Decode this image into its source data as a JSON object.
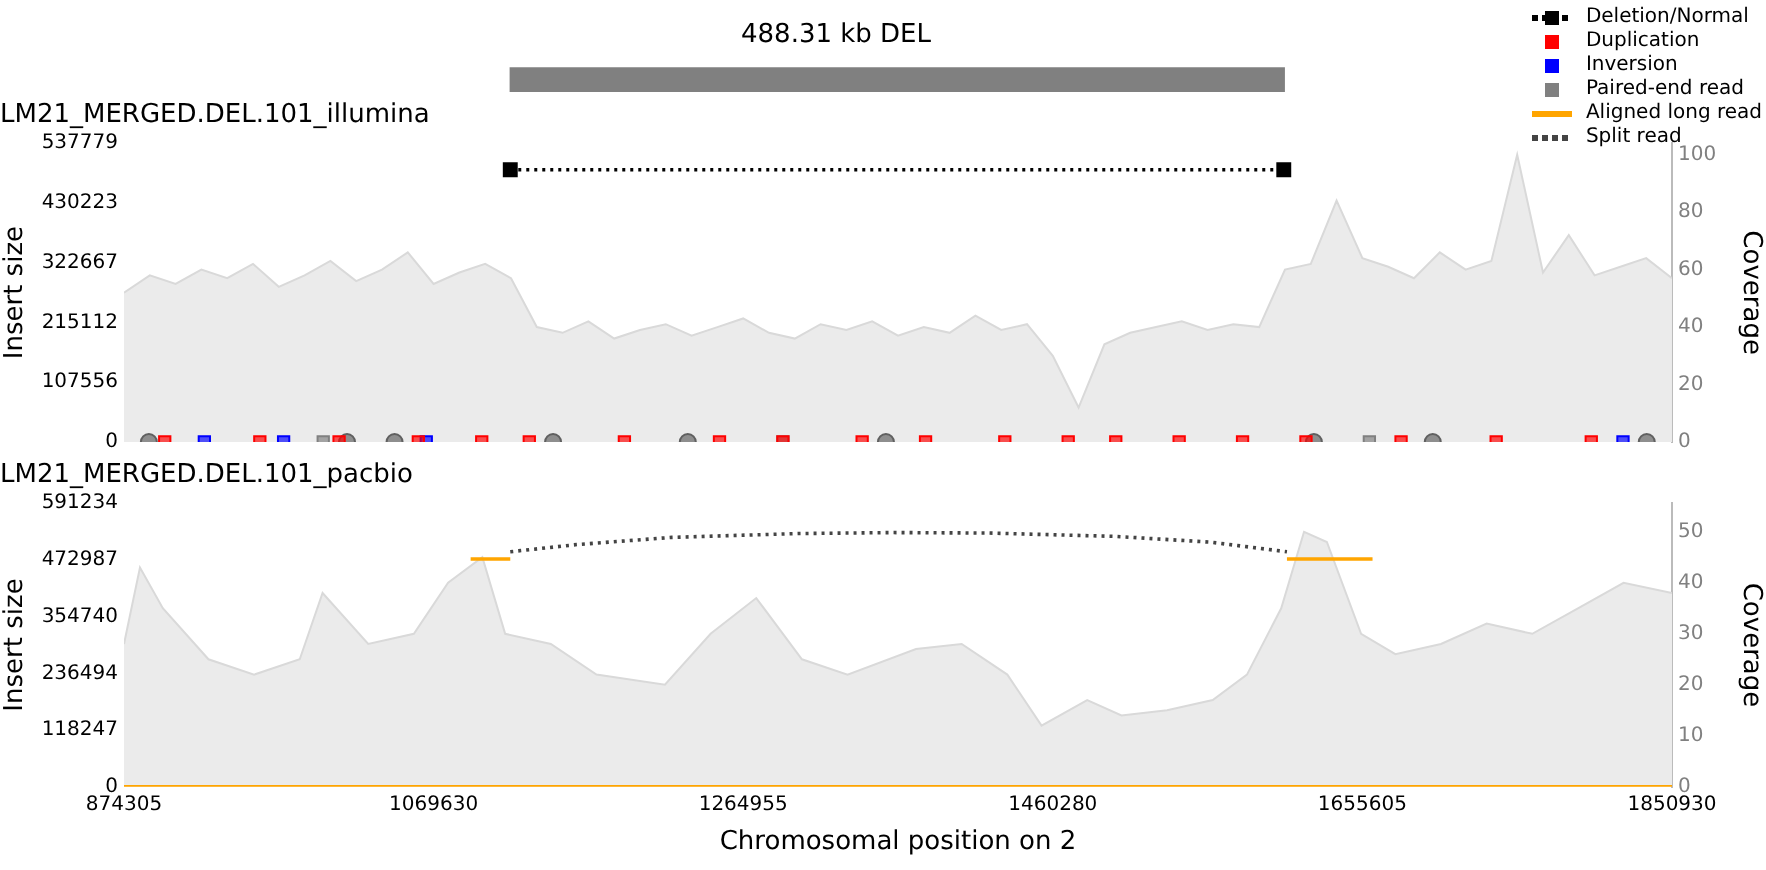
{
  "chart_data": [
    {
      "type": "bar",
      "orientation": "horizontal",
      "title": "488.31 kb DEL",
      "categories": [
        null
      ],
      "base": [
        1118000
      ],
      "values": [
        488310
      ],
      "color": "#808080",
      "xlim": [
        874305,
        1850930
      ],
      "tick_labels": false
    },
    {
      "type": "line",
      "title": "LM21_MERGED.DEL.101_illumina",
      "ylabel": "Insert size",
      "y2label": "Coverage",
      "xlim": [
        874305,
        1850930
      ],
      "xticks": [
        874305,
        1069630,
        1264955,
        1460280,
        1655605,
        1850930
      ],
      "ylim": [
        0,
        537779
      ],
      "yticks": [
        0,
        107556,
        215112,
        322667,
        430223,
        537779
      ],
      "y2lim": [
        0,
        104
      ],
      "y2ticks": [
        0,
        20,
        40,
        60,
        80,
        100
      ],
      "tick_labels": "y",
      "legend": "top right",
      "series": [
        {
          "type": "area",
          "axis": "y2",
          "color": "#d9d9d9",
          "x": [
            874305,
            890582,
            906859,
            923136,
            939413,
            955690,
            971967,
            988244,
            1004521,
            1020798,
            1037075,
            1053352,
            1069629,
            1085906,
            1102183,
            1118460,
            1134737,
            1151014,
            1167291,
            1183568,
            1199845,
            1216122,
            1232399,
            1248676,
            1264953,
            1281230,
            1297507,
            1313784,
            1330061,
            1346338,
            1362615,
            1378892,
            1395169,
            1411446,
            1427723,
            1444000,
            1460277,
            1476554,
            1492831,
            1509108,
            1525385,
            1541662,
            1557939,
            1574216,
            1590493,
            1606770,
            1623047,
            1639324,
            1655601,
            1671878,
            1688155,
            1704432,
            1720709,
            1736986,
            1753263,
            1769540,
            1785817,
            1802094,
            1818371,
            1834648,
            1850925
          ],
          "values": [
            52,
            58,
            55,
            60,
            57,
            62,
            54,
            58,
            63,
            56,
            60,
            66,
            55,
            59,
            62,
            57,
            40,
            38,
            42,
            36,
            39,
            41,
            37,
            40,
            43,
            38,
            36,
            41,
            39,
            42,
            37,
            40,
            38,
            44,
            39,
            41,
            30,
            12,
            34,
            38,
            40,
            42,
            39,
            41,
            40,
            60,
            62,
            84,
            64,
            61,
            57,
            66,
            60,
            63,
            100,
            59,
            72,
            58,
            61,
            64,
            57
          ]
        },
        {
          "type": "line",
          "name": "Deletion/Normal",
          "color": "#000000",
          "marker": "square",
          "line_style": "dotted",
          "x": [
            1118000,
            1606000
          ],
          "values": [
            490000,
            490000
          ]
        },
        {
          "type": "scatter",
          "name": "Duplication",
          "color": "#ff0000",
          "marker": "square",
          "x": [
            900000,
            960000,
            1010000,
            1060000,
            1100000,
            1130000,
            1190000,
            1250000,
            1290000,
            1340000,
            1380000,
            1430000,
            1470000,
            1500000,
            1540000,
            1580000,
            1620000,
            1680000,
            1740000,
            1800000
          ],
          "values": [
            0,
            0,
            0,
            0,
            0,
            0,
            0,
            0,
            0,
            0,
            0,
            0,
            0,
            0,
            0,
            0,
            0,
            0,
            0,
            0
          ]
        },
        {
          "type": "scatter",
          "name": "Inversion",
          "color": "#0000ff",
          "marker": "square",
          "x": [
            925000,
            975000,
            1065000,
            1820000
          ],
          "values": [
            0,
            0,
            0,
            0
          ]
        },
        {
          "type": "scatter",
          "name": "Paired-end read",
          "color": "#808080",
          "marker": "square",
          "x": [
            1000000,
            1290000,
            1660000
          ],
          "values": [
            0,
            0,
            0
          ]
        },
        {
          "type": "scatter",
          "color": "#606060",
          "marker": "circle",
          "x": [
            890000,
            1015000,
            1045000,
            1145000,
            1230000,
            1355000,
            1625000,
            1700000,
            1835000
          ],
          "values": [
            0,
            0,
            0,
            0,
            0,
            0,
            0,
            0,
            0
          ]
        }
      ]
    },
    {
      "type": "line",
      "title": "LM21_MERGED.DEL.101_pacbio",
      "xlabel": "Chromosomal position on 2",
      "ylabel": "Insert size",
      "y2label": "Coverage",
      "xlim": [
        874305,
        1850930
      ],
      "xticks": [
        874305,
        1069630,
        1264955,
        1460280,
        1655605,
        1850930
      ],
      "ylim": [
        0,
        591234
      ],
      "yticks": [
        0,
        118247,
        236494,
        354740,
        472987,
        591234
      ],
      "y2lim": [
        0,
        55.6
      ],
      "y2ticks": [
        0,
        10,
        20,
        30,
        40,
        50
      ],
      "legend": "top right",
      "series": [
        {
          "type": "area",
          "axis": "y2",
          "color": "#d9d9d9",
          "x": [
            874305,
            884385,
            898785,
            927585,
            956385,
            985185,
            999585,
            1028385,
            1057185,
            1078785,
            1100385,
            1114785,
            1143585,
            1172385,
            1215585,
            1244385,
            1273185,
            1302000,
            1330785,
            1373985,
            1402785,
            1431585,
            1453185,
            1481985,
            1503585,
            1532385,
            1561185,
            1582785,
            1604385,
            1618785,
            1633185,
            1654785,
            1676385,
            1705185,
            1733985,
            1762785,
            1791585,
            1820385,
            1850930
          ],
          "values": [
            28,
            43,
            35,
            25,
            22,
            25,
            38,
            28,
            30,
            40,
            45,
            30,
            28,
            22,
            20,
            30,
            37,
            25,
            22,
            27,
            28,
            22,
            12,
            17,
            14,
            15,
            17,
            22,
            35,
            50,
            48,
            30,
            26,
            28,
            32,
            30,
            35,
            40,
            38
          ]
        },
        {
          "type": "line",
          "name": "Aligned long read",
          "color": "#ffa500",
          "line_style": "solid",
          "marker": "none",
          "x": [
            1093000,
            1118000,
            1119000,
            1608000,
            1662000
          ],
          "values": [
            475000,
            475000,
            null,
            475000,
            475000
          ]
        },
        {
          "type": "line",
          "color": "#ffa500",
          "line_style": "solid",
          "marker": "none",
          "x": [
            874305,
            1850930
          ],
          "values": [
            0,
            0
          ]
        },
        {
          "type": "line",
          "name": "Split read",
          "color": "#444444",
          "line_style": "dotted",
          "marker": "none",
          "x": [
            1118000,
            1160000,
            1220000,
            1300000,
            1360000,
            1420000,
            1500000,
            1560000,
            1608000
          ],
          "values": [
            490000,
            505000,
            520000,
            528000,
            530000,
            529000,
            522000,
            510000,
            490000
          ]
        }
      ]
    }
  ]
}
